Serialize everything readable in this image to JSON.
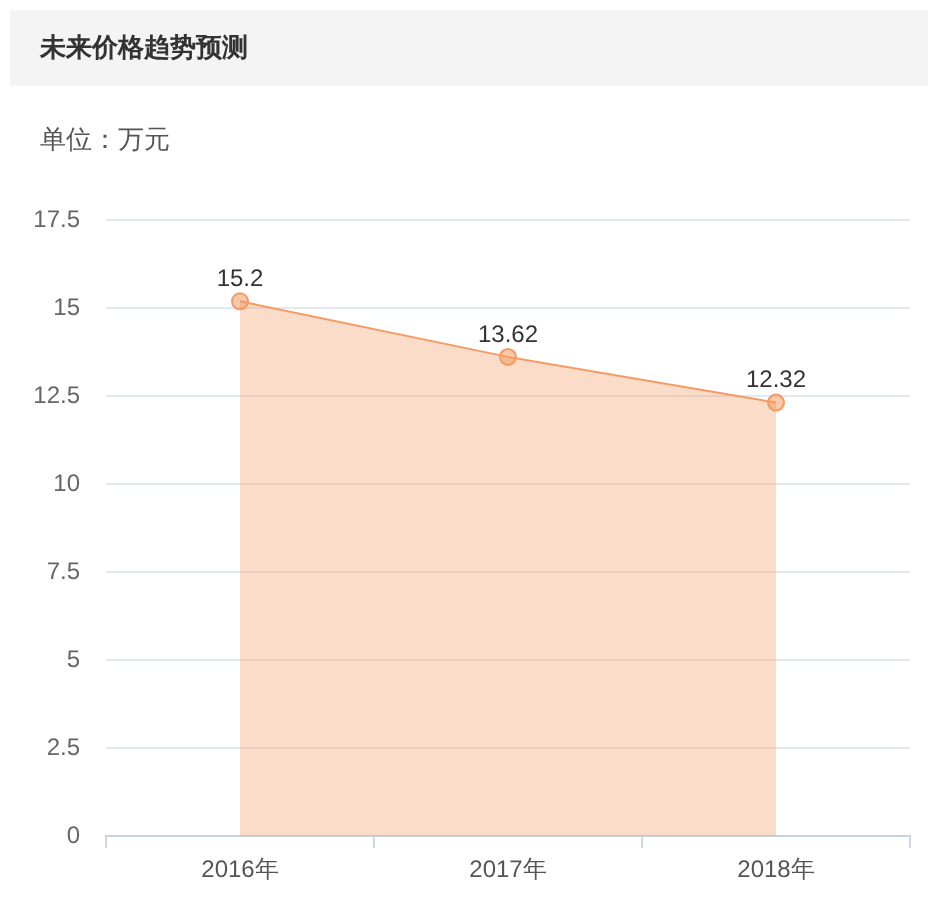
{
  "chart_data": {
    "type": "area",
    "title": "未来价格趋势预测",
    "subtitle": "单位：万元",
    "categories": [
      "2016年",
      "2017年",
      "2018年"
    ],
    "values": [
      15.2,
      13.62,
      12.32
    ],
    "color": "#f39b63",
    "ylim": [
      0,
      17.5
    ],
    "yticks": [
      0,
      2.5,
      5,
      7.5,
      10,
      12.5,
      15,
      17.5
    ],
    "grid": "y",
    "marker": "circle",
    "data_labels": true
  }
}
